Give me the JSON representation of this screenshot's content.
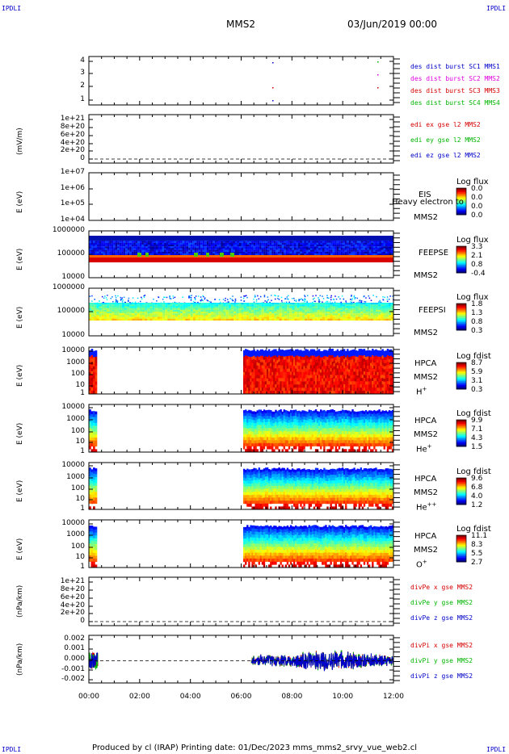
{
  "header": {
    "corner_left_top": "IPDLI",
    "corner_right_top": "IPDLI",
    "corner_left_bottom": "IPDLI",
    "corner_right_bottom": "IPDLI",
    "spacecraft": "MMS2",
    "datetime": "03/Jun/2019 00:00"
  },
  "footer": {
    "text": "Produced by cl (IRAP)   Printing date: 01/Dec/2023   mms_mms2_srvy_vue_web2.cl"
  },
  "chart_data": {
    "type": "heatmap",
    "x_ticks": [
      "00:00",
      "02:00",
      "04:00",
      "06:00",
      "08:00",
      "10:00",
      "12:00"
    ],
    "x_range_hours": [
      0,
      12
    ],
    "panels": [
      {
        "id": "burst",
        "ylabel": "",
        "y_ticks": [
          "4",
          "3",
          "2",
          "1"
        ],
        "legend": [
          {
            "text": "des dist burst SC1 MMS1",
            "color": "#0000c8"
          },
          {
            "text": "des dist burst SC2 MMS2",
            "color": "#e000e0"
          },
          {
            "text": "des dist burst SC3 MMS3",
            "color": "#d40000"
          },
          {
            "text": "des dist burst SC4 MMS4",
            "color": "#00b400"
          }
        ]
      },
      {
        "id": "edi",
        "ylabel": "(mV/m)",
        "y_ticks": [
          "1e+21",
          "8e+20",
          "6e+20",
          "4e+20",
          "2e+20",
          "0"
        ],
        "legend": [
          {
            "text": "edi ex gse l2 MMS2",
            "color": "#d40000"
          },
          {
            "text": "edi ey gse l2 MMS2",
            "color": "#00b400"
          },
          {
            "text": "edi ez gse l2 MMS2",
            "color": "#0000c8"
          }
        ]
      },
      {
        "id": "eis",
        "ylabel": "E (eV)",
        "y_ticks": [
          "1e+07",
          "1e+06",
          "1e+05",
          "1e+04"
        ],
        "instrument": "EIS",
        "spacecraft": "MMS2",
        "note": "Heavy electron to",
        "colorbar": {
          "title": "Log flux",
          "labels": [
            "0.0",
            "0.0",
            "0.0",
            "0.0"
          ]
        }
      },
      {
        "id": "feepse",
        "ylabel": "E (eV)",
        "y_ticks": [
          "1000000",
          "100000",
          "10000"
        ],
        "instrument": "FEEPSE",
        "spacecraft": "MMS2",
        "colorbar": {
          "title": "Log flux",
          "labels": [
            "3.3",
            "2.1",
            "0.8",
            "-0.4"
          ]
        }
      },
      {
        "id": "feepsi",
        "ylabel": "E (eV)",
        "y_ticks": [
          "1000000",
          "100000",
          "10000"
        ],
        "instrument": "FEEPSI",
        "spacecraft": "MMS2",
        "colorbar": {
          "title": "Log flux",
          "labels": [
            "1.8",
            "1.3",
            "0.8",
            "0.3"
          ]
        }
      },
      {
        "id": "hpca_h",
        "ylabel": "E (eV)",
        "y_ticks": [
          "10000",
          "1000",
          "100",
          "10",
          "1"
        ],
        "instrument": "HPCA",
        "spacecraft": "MMS2",
        "species": "H",
        "charge": "+",
        "colorbar": {
          "title": "Log fdist",
          "labels": [
            "8.7",
            "5.9",
            "3.1",
            "0.3"
          ]
        }
      },
      {
        "id": "hpca_he1",
        "ylabel": "E (eV)",
        "y_ticks": [
          "10000",
          "1000",
          "100",
          "10",
          "1"
        ],
        "instrument": "HPCA",
        "spacecraft": "MMS2",
        "species": "He",
        "charge": "+",
        "colorbar": {
          "title": "Log fdist",
          "labels": [
            "9.9",
            "7.1",
            "4.3",
            "1.5"
          ]
        }
      },
      {
        "id": "hpca_he2",
        "ylabel": "E (eV)",
        "y_ticks": [
          "10000",
          "1000",
          "100",
          "10",
          "1"
        ],
        "instrument": "HPCA",
        "spacecraft": "MMS2",
        "species": "He",
        "charge": "++",
        "colorbar": {
          "title": "Log fdist",
          "labels": [
            "9.6",
            "6.8",
            "4.0",
            "1.2"
          ]
        }
      },
      {
        "id": "hpca_o",
        "ylabel": "E (eV)",
        "y_ticks": [
          "10000",
          "1000",
          "100",
          "10",
          "1"
        ],
        "instrument": "HPCA",
        "spacecraft": "MMS2",
        "species": "O",
        "charge": "+",
        "colorbar": {
          "title": "Log fdist",
          "labels": [
            "11.1",
            "8.3",
            "5.5",
            "2.7"
          ]
        }
      },
      {
        "id": "divpe",
        "ylabel": "(nPa/km)",
        "y_ticks": [
          "1e+21",
          "8e+20",
          "6e+20",
          "4e+20",
          "2e+20",
          "0"
        ],
        "legend": [
          {
            "text": "divPe x gse MMS2",
            "color": "#d40000"
          },
          {
            "text": "divPe y gse MMS2",
            "color": "#00b400"
          },
          {
            "text": "divPe z gse MMS2",
            "color": "#0000c8"
          }
        ]
      },
      {
        "id": "divpi",
        "ylabel": "(nPa/km)",
        "y_ticks": [
          "0.002",
          "0.001",
          "0.000",
          "-0.001",
          "-0.002"
        ],
        "y_range": [
          -0.0025,
          0.0025
        ],
        "legend": [
          {
            "text": "divPi x gse MMS2",
            "color": "#d40000"
          },
          {
            "text": "divPi y gse MMS2",
            "color": "#00b400"
          },
          {
            "text": "divPi z gse MMS2",
            "color": "#0000c8"
          }
        ]
      }
    ]
  }
}
